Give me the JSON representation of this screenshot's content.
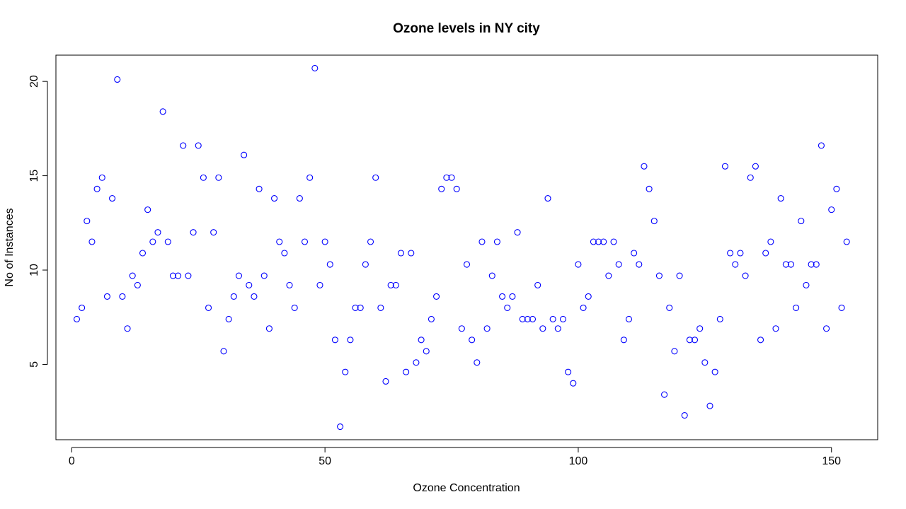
{
  "chart_data": {
    "type": "scatter",
    "title": "Ozone levels in NY city",
    "xlabel": "Ozone Concentration",
    "ylabel": "No of Instances",
    "xlim": [
      -3.12,
      159.12
    ],
    "ylim": [
      1.008,
      21.392
    ],
    "xticks": [
      0,
      50,
      100,
      150
    ],
    "yticks": [
      5,
      10,
      15,
      20
    ],
    "grid": false,
    "legend": "none",
    "marker": "open-circle",
    "point_color": "#0000ff",
    "x": [
      1,
      2,
      3,
      4,
      5,
      6,
      7,
      8,
      9,
      10,
      11,
      12,
      13,
      14,
      15,
      16,
      17,
      18,
      19,
      20,
      21,
      22,
      23,
      24,
      25,
      26,
      27,
      28,
      29,
      30,
      31,
      32,
      33,
      34,
      35,
      36,
      37,
      38,
      39,
      40,
      41,
      42,
      43,
      44,
      45,
      46,
      47,
      48,
      49,
      50,
      51,
      52,
      53,
      54,
      55,
      56,
      57,
      58,
      59,
      60,
      61,
      62,
      63,
      64,
      65,
      66,
      67,
      68,
      69,
      70,
      71,
      72,
      73,
      74,
      75,
      76,
      77,
      78,
      79,
      80,
      81,
      82,
      83,
      84,
      85,
      86,
      87,
      88,
      89,
      90,
      91,
      92,
      93,
      94,
      95,
      96,
      97,
      98,
      99,
      100,
      101,
      102,
      103,
      104,
      105,
      106,
      107,
      108,
      109,
      110,
      111,
      112,
      113,
      114,
      115,
      116,
      117,
      118,
      119,
      120,
      121,
      122,
      123,
      124,
      125,
      126,
      127,
      128,
      129,
      130,
      131,
      132,
      133,
      134,
      135,
      136,
      137,
      138,
      139,
      140,
      141,
      142,
      143,
      144,
      145,
      146,
      147,
      148,
      149,
      150,
      151,
      152,
      153
    ],
    "y": [
      7.4,
      8.0,
      12.6,
      11.5,
      14.3,
      14.9,
      8.6,
      13.8,
      20.1,
      8.6,
      6.9,
      9.7,
      9.2,
      10.9,
      13.2,
      11.5,
      12.0,
      18.4,
      11.5,
      9.7,
      9.7,
      16.6,
      9.7,
      12.0,
      16.6,
      14.9,
      8.0,
      12.0,
      14.9,
      5.7,
      7.4,
      8.6,
      9.7,
      16.1,
      9.2,
      8.6,
      14.3,
      9.7,
      6.9,
      13.8,
      11.5,
      10.9,
      9.2,
      8.0,
      13.8,
      11.5,
      14.9,
      20.7,
      9.2,
      11.5,
      10.3,
      6.3,
      1.7,
      4.6,
      6.3,
      8.0,
      8.0,
      10.3,
      11.5,
      14.9,
      8.0,
      4.1,
      9.2,
      9.2,
      10.9,
      4.6,
      10.9,
      5.1,
      6.3,
      5.7,
      7.4,
      8.6,
      14.3,
      14.9,
      14.9,
      14.3,
      6.9,
      10.3,
      6.3,
      5.1,
      11.5,
      6.9,
      9.7,
      11.5,
      8.6,
      8.0,
      8.6,
      12.0,
      7.4,
      7.4,
      7.4,
      9.2,
      6.9,
      13.8,
      7.4,
      6.9,
      7.4,
      4.6,
      4.0,
      10.3,
      8.0,
      8.6,
      11.5,
      11.5,
      11.5,
      9.7,
      11.5,
      10.3,
      6.3,
      7.4,
      10.9,
      10.3,
      15.5,
      14.3,
      12.6,
      9.7,
      3.4,
      8.0,
      5.7,
      9.7,
      2.3,
      6.3,
      6.3,
      6.9,
      5.1,
      2.8,
      4.6,
      7.4,
      15.5,
      10.9,
      10.3,
      10.9,
      9.7,
      14.9,
      15.5,
      6.3,
      10.9,
      11.5,
      6.9,
      13.8,
      10.3,
      10.3,
      8.0,
      12.6,
      9.2,
      10.3,
      10.3,
      16.6,
      6.9,
      13.2,
      14.3,
      8.0,
      11.5
    ]
  }
}
